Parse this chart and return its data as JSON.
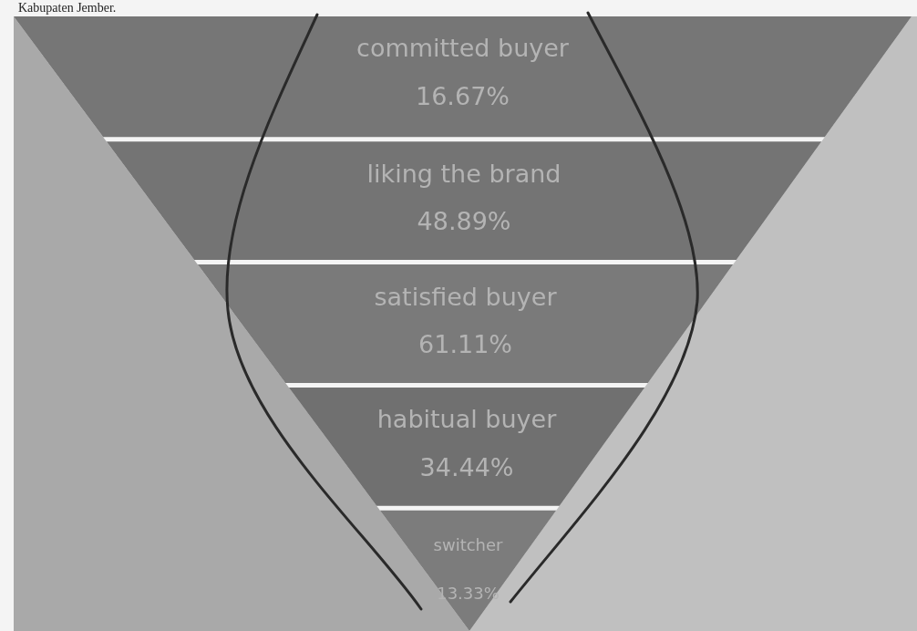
{
  "chart_data": {
    "type": "other",
    "categories": [
      "committed buyer",
      "liking the brand",
      "satisfied buyer",
      "habitual buyer",
      "switcher"
    ],
    "values": [
      16.67,
      48.89,
      61.11,
      34.44,
      13.33
    ],
    "value_labels": [
      "16.67%",
      "48.89%",
      "61.11%",
      "34.44%",
      "13.33%"
    ],
    "colors": [
      "#767676",
      "#747474",
      "#7a7a7a",
      "#707070",
      "#7c7c7c"
    ],
    "annotations": [
      "Kabupaten Jember."
    ]
  }
}
